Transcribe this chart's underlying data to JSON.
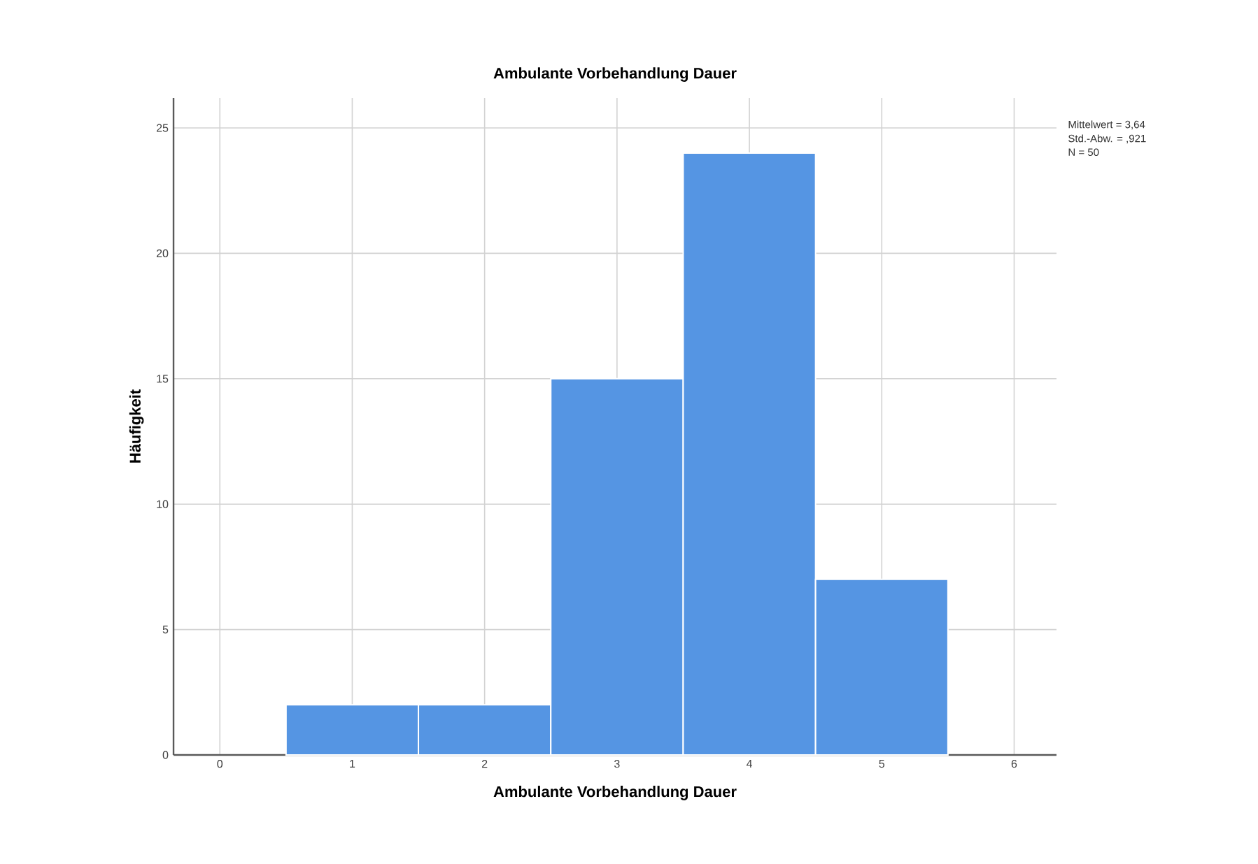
{
  "chart_data": {
    "type": "histogram",
    "title": "Ambulante Vorbehandlung Dauer",
    "xlabel": "Ambulante Vorbehandlung Dauer",
    "ylabel": "Häufigkeit",
    "bins": [
      0.5,
      1.5,
      2.5,
      3.5,
      4.5,
      5.5
    ],
    "values": [
      2,
      2,
      15,
      24,
      7
    ],
    "color": "#5595e3",
    "xlim": [
      -0.35,
      6.32
    ],
    "ylim": [
      0,
      26.2
    ],
    "xticks": [
      0,
      1,
      2,
      3,
      4,
      5,
      6
    ],
    "yticks": [
      0,
      5,
      10,
      15,
      20,
      25
    ],
    "grid": true,
    "annotations": [
      "Mittelwert = 3,64",
      "Std.-Abw. = ,921",
      "N = 50"
    ]
  }
}
